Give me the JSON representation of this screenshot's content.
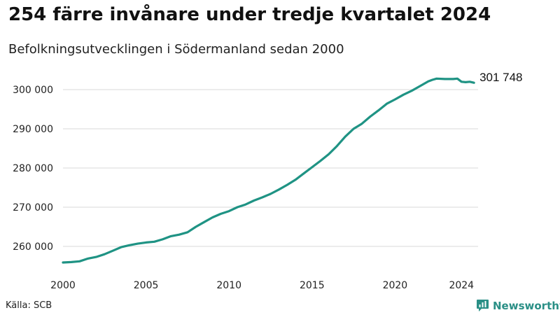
{
  "header": {
    "title": "254 färre invånare under tredje kvartalet 2024",
    "subtitle": "Befolkningsutvecklingen i Södermanland sedan 2000"
  },
  "footer": {
    "source": "Källa: SCB",
    "brand": "Newsworthy"
  },
  "colors": {
    "line": "#1f9384",
    "grid": "#d9d9d9",
    "brand": "#2a8f86"
  },
  "chart_data": {
    "type": "line",
    "title": "254 färre invånare under tredje kvartalet 2024",
    "subtitle": "Befolkningsutvecklingen i Södermanland sedan 2000",
    "xlabel": "",
    "ylabel": "",
    "xlim": [
      2000,
      2025
    ],
    "ylim": [
      255000,
      305000
    ],
    "grid": true,
    "y_ticks": [
      260000,
      270000,
      280000,
      290000,
      300000
    ],
    "y_tick_labels": [
      "260 000",
      "270 000",
      "280 000",
      "290 000",
      "300 000"
    ],
    "x_ticks": [
      2000,
      2005,
      2010,
      2015,
      2020,
      2024
    ],
    "x_tick_labels": [
      "2000",
      "2005",
      "2010",
      "2015",
      "2020",
      "2024"
    ],
    "end_label": "301 748",
    "series": [
      {
        "x": [
          2000.0,
          2000.5,
          2001.0,
          2001.5,
          2002.0,
          2002.5,
          2003.0,
          2003.5,
          2004.0,
          2004.5,
          2005.0,
          2005.5,
          2006.0,
          2006.5,
          2007.0,
          2007.5,
          2008.0,
          2008.5,
          2009.0,
          2009.5,
          2010.0,
          2010.5,
          2011.0,
          2011.5,
          2012.0,
          2012.5,
          2013.0,
          2013.5,
          2014.0,
          2014.5,
          2015.0,
          2015.5,
          2016.0,
          2016.5,
          2017.0,
          2017.5,
          2018.0,
          2018.5,
          2019.0,
          2019.5,
          2020.0,
          2020.5,
          2021.0,
          2021.5,
          2022.0,
          2022.25,
          2022.5,
          2023.0,
          2023.5,
          2023.75,
          2024.0,
          2024.25,
          2024.5,
          2024.75
        ],
        "values": [
          255900,
          256000,
          256200,
          256900,
          257300,
          258000,
          258900,
          259800,
          260300,
          260700,
          261000,
          261200,
          261800,
          262600,
          263000,
          263600,
          265000,
          266200,
          267400,
          268300,
          269000,
          270000,
          270700,
          271700,
          272500,
          273400,
          274500,
          275700,
          277000,
          278600,
          280200,
          281800,
          283500,
          285600,
          288000,
          290000,
          291300,
          293100,
          294700,
          296400,
          297500,
          298700,
          299700,
          300900,
          302100,
          302500,
          302800,
          302700,
          302700,
          302800,
          302000,
          301900,
          302000,
          301748
        ]
      }
    ]
  }
}
